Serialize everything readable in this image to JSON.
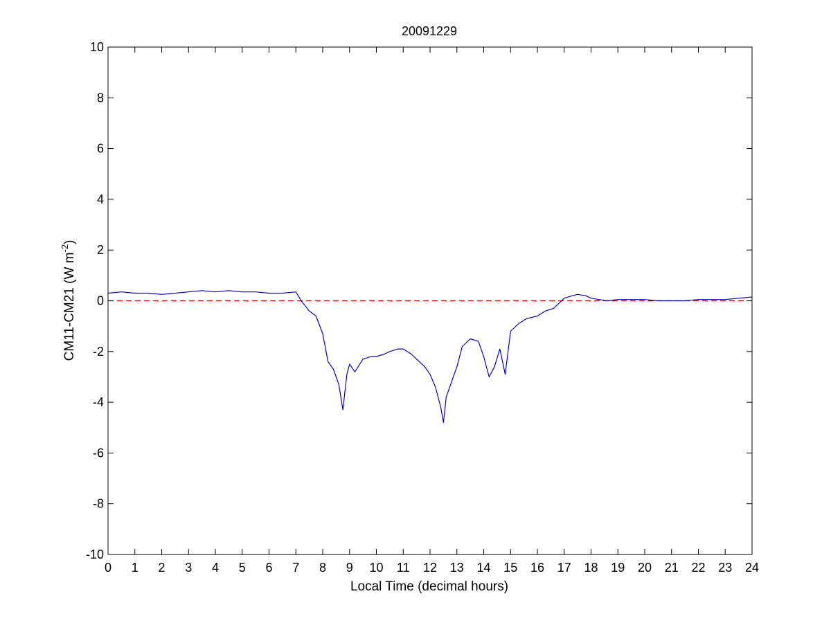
{
  "chart_data": {
    "type": "line",
    "title": "20091229",
    "xlabel": "Local Time (decimal hours)",
    "ylabel": {
      "main": "CM11-CM21 (W m",
      "superscript": "-2",
      "close": ")"
    },
    "xlim": [
      0,
      24
    ],
    "ylim": [
      -10,
      10
    ],
    "x_ticks": [
      0,
      1,
      2,
      3,
      4,
      5,
      6,
      7,
      8,
      9,
      10,
      11,
      12,
      13,
      14,
      15,
      16,
      17,
      18,
      19,
      20,
      21,
      22,
      23,
      24
    ],
    "y_ticks": [
      -10,
      -8,
      -6,
      -4,
      -2,
      0,
      2,
      4,
      6,
      8,
      10
    ],
    "grid": false,
    "legend": "none",
    "reference_line": {
      "y": 0,
      "color": "#cc0000",
      "style": "dashed"
    },
    "series": [
      {
        "color": "#0000cc",
        "x": [
          0,
          0.5,
          1,
          1.5,
          2,
          2.5,
          3,
          3.5,
          4,
          4.5,
          5,
          5.5,
          6,
          6.5,
          7,
          7.2,
          7.5,
          7.75,
          8,
          8.2,
          8.4,
          8.6,
          8.75,
          8.9,
          9,
          9.2,
          9.5,
          9.8,
          10,
          10.3,
          10.5,
          10.8,
          11,
          11.3,
          11.5,
          11.8,
          12,
          12.2,
          12.4,
          12.5,
          12.6,
          12.8,
          13,
          13.2,
          13.5,
          13.8,
          14,
          14.2,
          14.4,
          14.6,
          14.8,
          15,
          15.3,
          15.6,
          16,
          16.3,
          16.6,
          17,
          17.3,
          17.5,
          17.8,
          18,
          18.3,
          18.6,
          19,
          19.5,
          20,
          20.5,
          21,
          21.5,
          22,
          22.5,
          23,
          23.5,
          24
        ],
        "y": [
          0.3,
          0.35,
          0.3,
          0.3,
          0.25,
          0.3,
          0.35,
          0.4,
          0.35,
          0.4,
          0.35,
          0.35,
          0.3,
          0.3,
          0.35,
          0.0,
          -0.4,
          -0.6,
          -1.3,
          -2.4,
          -2.7,
          -3.3,
          -4.3,
          -2.9,
          -2.5,
          -2.8,
          -2.3,
          -2.2,
          -2.2,
          -2.1,
          -2.0,
          -1.9,
          -1.9,
          -2.1,
          -2.3,
          -2.6,
          -2.9,
          -3.4,
          -4.2,
          -4.8,
          -3.8,
          -3.2,
          -2.6,
          -1.8,
          -1.5,
          -1.6,
          -2.2,
          -3.0,
          -2.6,
          -1.9,
          -2.9,
          -1.2,
          -0.9,
          -0.7,
          -0.6,
          -0.4,
          -0.3,
          0.1,
          0.2,
          0.25,
          0.2,
          0.1,
          0.05,
          0.0,
          0.05,
          0.05,
          0.05,
          0.0,
          0.0,
          0.0,
          0.05,
          0.05,
          0.05,
          0.1,
          0.15
        ]
      }
    ]
  }
}
